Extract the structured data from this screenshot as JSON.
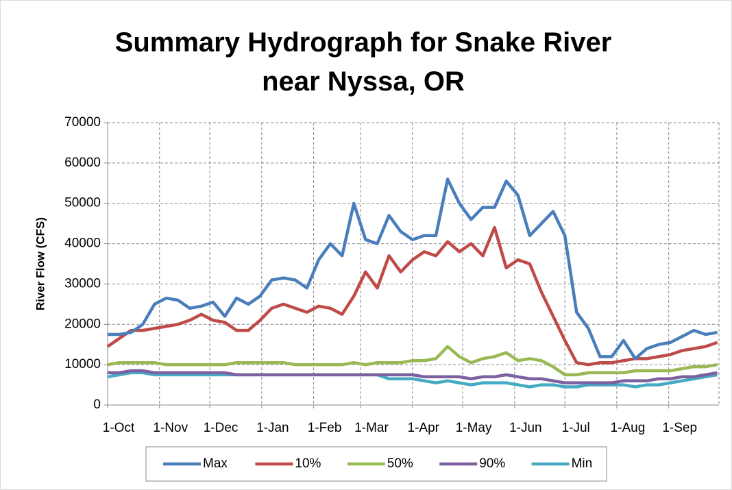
{
  "chart_data": {
    "type": "line",
    "title": "Summary Hydrograph for Snake River near Nyssa, OR",
    "y_label": "River Flow (CFS)",
    "x": [
      0,
      7,
      14,
      21,
      28,
      35,
      42,
      49,
      56,
      63,
      70,
      77,
      84,
      91,
      98,
      105,
      112,
      119,
      126,
      133,
      140,
      147,
      154,
      161,
      168,
      175,
      182,
      189,
      196,
      203,
      210,
      217,
      224,
      231,
      238,
      245,
      252,
      259,
      266,
      273,
      280,
      287,
      294,
      301,
      308,
      315,
      322,
      329,
      336,
      343,
      350,
      357,
      364
    ],
    "xlim": [
      0,
      365
    ],
    "xticks": [
      {
        "value": 0,
        "label": "1-Oct"
      },
      {
        "value": 31,
        "label": "1-Nov"
      },
      {
        "value": 61,
        "label": "1-Dec"
      },
      {
        "value": 92,
        "label": "1-Jan"
      },
      {
        "value": 123,
        "label": "1-Feb"
      },
      {
        "value": 151,
        "label": "1-Mar"
      },
      {
        "value": 182,
        "label": "1-Apr"
      },
      {
        "value": 212,
        "label": "1-May"
      },
      {
        "value": 243,
        "label": "1-Jun"
      },
      {
        "value": 273,
        "label": "1-Jul"
      },
      {
        "value": 304,
        "label": "1-Aug"
      },
      {
        "value": 335,
        "label": "1-Sep"
      }
    ],
    "ylim": [
      0,
      70000
    ],
    "yticks": [
      0,
      10000,
      20000,
      30000,
      40000,
      50000,
      60000,
      70000
    ],
    "grid": true,
    "legend": "bottom",
    "series": [
      {
        "name": "Max",
        "color": "#4a7ebb",
        "values": [
          17500,
          17500,
          18000,
          20000,
          25000,
          26500,
          26000,
          24000,
          24500,
          25500,
          22000,
          26500,
          25000,
          27000,
          31000,
          31500,
          31000,
          29000,
          36000,
          40000,
          37000,
          50000,
          41000,
          40000,
          47000,
          43000,
          41000,
          42000,
          42000,
          56000,
          50000,
          46000,
          49000,
          49000,
          55500,
          52000,
          42000,
          45000,
          48000,
          42000,
          23000,
          19000,
          12000,
          12000,
          16000,
          11500,
          14000,
          15000,
          15500,
          17000,
          18500,
          17500,
          18000
        ]
      },
      {
        "name": "10%",
        "color": "#be4b48",
        "values": [
          14500,
          16500,
          18500,
          18500,
          19000,
          19500,
          20000,
          21000,
          22500,
          21000,
          20500,
          18500,
          18500,
          21000,
          24000,
          25000,
          24000,
          23000,
          24500,
          24000,
          22500,
          27000,
          33000,
          29000,
          37000,
          33000,
          36000,
          38000,
          37000,
          40500,
          38000,
          40000,
          37000,
          44000,
          34000,
          36000,
          35000,
          28000,
          22000,
          16000,
          10500,
          10000,
          10500,
          10500,
          11000,
          11500,
          11500,
          12000,
          12500,
          13500,
          14000,
          14500,
          15500
        ]
      },
      {
        "name": "50%",
        "color": "#98b954",
        "values": [
          10000,
          10500,
          10500,
          10500,
          10500,
          10000,
          10000,
          10000,
          10000,
          10000,
          10000,
          10500,
          10500,
          10500,
          10500,
          10500,
          10000,
          10000,
          10000,
          10000,
          10000,
          10500,
          10000,
          10500,
          10500,
          10500,
          11000,
          11000,
          11500,
          14500,
          12000,
          10500,
          11500,
          12000,
          13000,
          11000,
          11500,
          11000,
          9500,
          7500,
          7500,
          8000,
          8000,
          8000,
          8000,
          8500,
          8500,
          8500,
          8500,
          9000,
          9500,
          9500,
          10000
        ]
      },
      {
        "name": "90%",
        "color": "#7d60a0",
        "values": [
          8000,
          8000,
          8500,
          8500,
          8000,
          8000,
          8000,
          8000,
          8000,
          8000,
          8000,
          7500,
          7500,
          7500,
          7500,
          7500,
          7500,
          7500,
          7500,
          7500,
          7500,
          7500,
          7500,
          7500,
          7500,
          7500,
          7500,
          7000,
          7000,
          7000,
          7000,
          6500,
          7000,
          7000,
          7500,
          7000,
          6500,
          6500,
          6000,
          5500,
          5500,
          5500,
          5500,
          5500,
          6000,
          6000,
          6000,
          6500,
          6500,
          7000,
          7000,
          7500,
          8000
        ]
      },
      {
        "name": "Min",
        "color": "#46aac5",
        "values": [
          7000,
          7500,
          8000,
          8000,
          7500,
          7500,
          7500,
          7500,
          7500,
          7500,
          7500,
          7500,
          7500,
          7500,
          7500,
          7500,
          7500,
          7500,
          7500,
          7500,
          7500,
          7500,
          7500,
          7500,
          6500,
          6500,
          6500,
          6000,
          5500,
          6000,
          5500,
          5000,
          5500,
          5500,
          5500,
          5000,
          4500,
          5000,
          5000,
          4500,
          4500,
          5000,
          5000,
          5000,
          5000,
          4500,
          5000,
          5000,
          5500,
          6000,
          6500,
          7000,
          7500
        ]
      }
    ]
  }
}
